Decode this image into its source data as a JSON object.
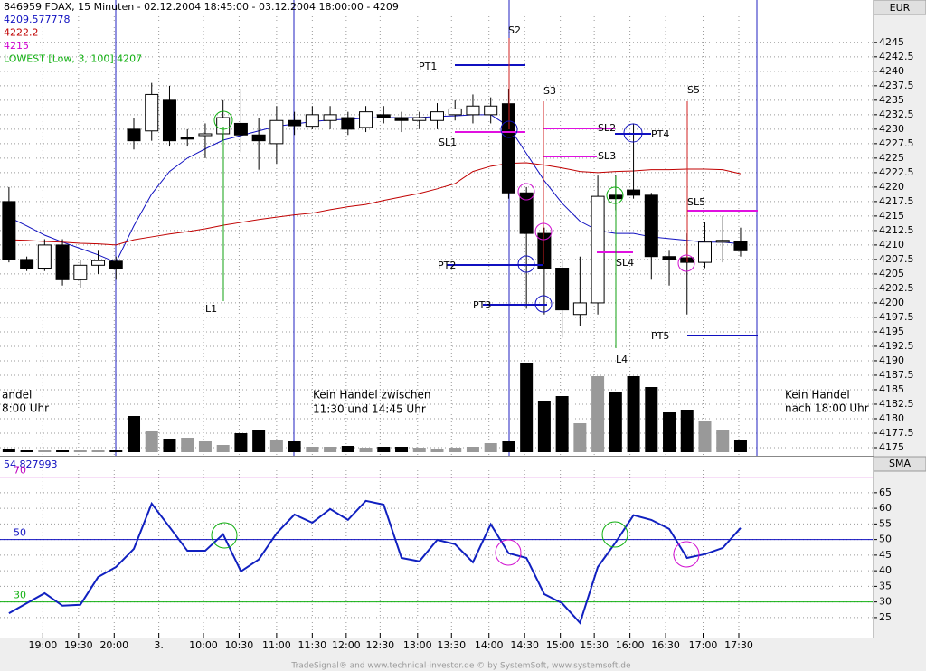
{
  "chart_data": [
    {
      "type": "candlestick",
      "title": "846959  FDAX, 15 Minuten - 02.12.2004 18:45:00 - 03.12.2004 18:00:00 - 4209",
      "unit": "EUR",
      "x": [
        0,
        1,
        2,
        3,
        4,
        5,
        6,
        7,
        8,
        9,
        10,
        11,
        12,
        13,
        14,
        15,
        16,
        17,
        18,
        19,
        20,
        21,
        22,
        23,
        24,
        25,
        26,
        27,
        28,
        29,
        30,
        31,
        32,
        33,
        34,
        35,
        36,
        37,
        38,
        39,
        40,
        41
      ],
      "open": [
        4217.5,
        4207.5,
        4206,
        4210,
        4204,
        4206.5,
        4207.2,
        4230,
        4229.7,
        4235,
        4228.6,
        4229,
        4229.2,
        4231,
        4229,
        4227.5,
        4231.5,
        4230.5,
        4231.5,
        4232,
        4230.3,
        4232.5,
        4232,
        4231.5,
        4231.5,
        4232.5,
        4232.5,
        4232.5,
        4234.4,
        4219,
        4212,
        4206,
        4198,
        4200,
        4218.6,
        4219.5,
        4218.6,
        4208,
        4207.8,
        4207,
        4210.5,
        4210.6
      ],
      "high": [
        4220,
        4208,
        4211,
        4211,
        4207.5,
        4209,
        4208,
        4232,
        4238,
        4237.5,
        4230,
        4231,
        4235,
        4237,
        4232,
        4234,
        4233,
        4234,
        4234,
        4233,
        4234,
        4234,
        4233,
        4233,
        4234.5,
        4235,
        4236,
        4235.5,
        4237,
        4220,
        4213,
        4207.5,
        4208,
        4222,
        4222,
        4231,
        4219,
        4209,
        4212,
        4214,
        4215,
        4213
      ],
      "low": [
        4207,
        4205.5,
        4205.5,
        4203,
        4202.5,
        4205,
        4204,
        4226.5,
        4228,
        4227,
        4227,
        4225,
        4228,
        4226,
        4223,
        4224,
        4229,
        4230,
        4230,
        4229,
        4229.5,
        4231,
        4229.5,
        4230,
        4230,
        4231.5,
        4231,
        4231,
        4218,
        4199,
        4198,
        4194,
        4196,
        4198,
        4216,
        4218,
        4204,
        4203,
        4198,
        4206,
        4207,
        4208
      ],
      "close": [
        4207.5,
        4206,
        4210,
        4204,
        4206.5,
        4207.3,
        4206,
        4228,
        4236,
        4228,
        4228.6,
        4229.2,
        4232,
        4229,
        4228,
        4231.5,
        4230.6,
        4232.5,
        4232.5,
        4230,
        4233,
        4232,
        4231.5,
        4232,
        4233,
        4233.5,
        4234,
        4234,
        4219,
        4212,
        4206,
        4198.8,
        4200,
        4218.4,
        4218,
        4218.6,
        4208,
        4207.5,
        4207,
        4210.5,
        4210.8,
        4209
      ],
      "series": [
        {
          "name": "4209.577778",
          "color": "#1010c0",
          "values": [
            4214.8,
            4213.3,
            4211.7,
            4210.5,
            4209.4,
            4208.3,
            4207.0,
            4213.3,
            4218.8,
            4222.7,
            4225.0,
            4226.6,
            4228.1,
            4228.9,
            4229.7,
            4230.5,
            4230.9,
            4231.3,
            4231.6,
            4231.7,
            4231.9,
            4232.0,
            4232.0,
            4232.0,
            4232.2,
            4232.3,
            4232.5,
            4232.5,
            4230.5,
            4225.8,
            4221.1,
            4217.2,
            4214.1,
            4212.5,
            4212.0,
            4212.0,
            4211.4,
            4211.1,
            4210.8,
            4210.5,
            4210.5,
            4210.2
          ]
        },
        {
          "name": "4222.2",
          "color": "#c00000",
          "values": [
            4210.9,
            4210.8,
            4210.6,
            4210.5,
            4210.3,
            4210.2,
            4210.0,
            4210.9,
            4211.4,
            4211.9,
            4212.3,
            4212.8,
            4213.4,
            4213.9,
            4214.4,
            4214.8,
            4215.2,
            4215.5,
            4216.1,
            4216.6,
            4217.0,
            4217.7,
            4218.3,
            4218.9,
            4219.7,
            4220.6,
            4222.7,
            4223.6,
            4224.1,
            4224.2,
            4223.8,
            4223.3,
            4222.7,
            4222.5,
            4222.7,
            4222.8,
            4223.0,
            4223.0,
            4223.1,
            4223.1,
            4223.0,
            4222.3
          ]
        }
      ],
      "extra_legend": [
        {
          "label": "4215",
          "color": "#d000d0"
        },
        {
          "label": "LOWEST [Low, 3, 100] 4207",
          "color": "#10b010"
        }
      ],
      "volume": {
        "values": [
          3,
          2,
          2,
          2,
          2,
          2,
          2,
          40,
          23,
          15,
          16,
          12,
          8,
          21,
          24,
          13,
          12,
          6,
          6,
          7,
          5,
          6,
          6,
          5,
          3,
          5,
          6,
          10,
          12,
          99,
          57,
          62,
          32,
          84,
          66,
          84,
          72,
          44,
          47,
          34,
          25,
          13
        ],
        "ylim": [
          0,
          110
        ],
        "up_color": "#999999",
        "down_color": "#000000"
      },
      "xlim": [
        -0.5,
        48.4
      ],
      "ylim": [
        4173.75,
        4249.5
      ],
      "yticks": [
        4175,
        4177.5,
        4180,
        4182.5,
        4185,
        4187.5,
        4190,
        4192.5,
        4195,
        4197.5,
        4200,
        4202.5,
        4205,
        4207.5,
        4210,
        4212.5,
        4215,
        4217.5,
        4220,
        4222.5,
        4225,
        4227.5,
        4230,
        4232.5,
        4235,
        4237.5,
        4240,
        4242.5,
        4245
      ],
      "grid": true,
      "annotations": {
        "PT1": "PT1",
        "S2": "S2",
        "S3": "S3",
        "SL1": "SL1",
        "SL2": "SL2",
        "SL3": "SL3",
        "PT4": "PT4",
        "S5": "S5",
        "SL5": "SL5",
        "PT2": "PT2",
        "SL4": "SL4",
        "PT3": "PT3",
        "PT5": "PT5",
        "L1": "L1",
        "L4": "L4",
        "note1a": "andel",
        "note1b": "8:00 Uhr",
        "note2a": "Kein Handel zwischen",
        "note2b": "11:30 und 14:45 Uhr",
        "note3a": "Kein Handel",
        "note3b": "nach 18:00 Uhr"
      }
    },
    {
      "type": "line",
      "title": "54.827993",
      "unit": "SMA",
      "series": [
        {
          "name": "54.827993",
          "color": "#1020c0",
          "values": [
            26.4,
            29.6,
            32.8,
            28.8,
            29.1,
            38.0,
            41.2,
            47.0,
            61.5,
            54.0,
            46.4,
            46.4,
            51.7,
            39.8,
            43.6,
            52.0,
            58.0,
            55.4,
            59.8,
            56.3,
            62.4,
            61.2,
            44.1,
            43.0,
            49.9,
            48.5,
            42.7,
            54.9,
            45.6,
            44.1,
            32.5,
            29.6,
            23.3,
            41.2,
            49.1,
            57.8,
            56.3,
            53.4,
            44.1,
            45.3,
            47.3,
            53.7
          ]
        }
      ],
      "levels": [
        {
          "value": 70,
          "label": "70",
          "color": "#c000c0"
        },
        {
          "value": 50,
          "label": "50",
          "color": "#1010c0"
        },
        {
          "value": 30,
          "label": "30",
          "color": "#10b010"
        }
      ],
      "xlim": [
        -0.5,
        48.4
      ],
      "ylim": [
        18.6,
        72.2
      ],
      "yticks": [
        25,
        30,
        35,
        40,
        45,
        50,
        55,
        60,
        65
      ],
      "xticks": [
        {
          "value": 1.9,
          "label": "19:00"
        },
        {
          "value": 3.9,
          "label": "19:30"
        },
        {
          "value": 5.9,
          "label": "20:00"
        },
        {
          "value": 8.4,
          "label": "3."
        },
        {
          "value": 10.9,
          "label": "10:00"
        },
        {
          "value": 12.9,
          "label": "10:30"
        },
        {
          "value": 15,
          "label": "11:00"
        },
        {
          "value": 17,
          "label": "11:30"
        },
        {
          "value": 18.9,
          "label": "12:00"
        },
        {
          "value": 20.8,
          "label": "12:30"
        },
        {
          "value": 22.9,
          "label": "13:00"
        },
        {
          "value": 24.8,
          "label": "13:30"
        },
        {
          "value": 26.9,
          "label": "14:00"
        },
        {
          "value": 28.9,
          "label": "14:30"
        },
        {
          "value": 30.9,
          "label": "15:00"
        },
        {
          "value": 32.8,
          "label": "15:30"
        },
        {
          "value": 34.8,
          "label": "16:00"
        },
        {
          "value": 36.8,
          "label": "16:30"
        },
        {
          "value": 38.9,
          "label": "17:00"
        },
        {
          "value": 40.9,
          "label": "17:30"
        }
      ],
      "grid": true,
      "footer": "TradeSignal® and www.technical-investor.de © by SystemSoft, www.systemsoft.de"
    }
  ]
}
